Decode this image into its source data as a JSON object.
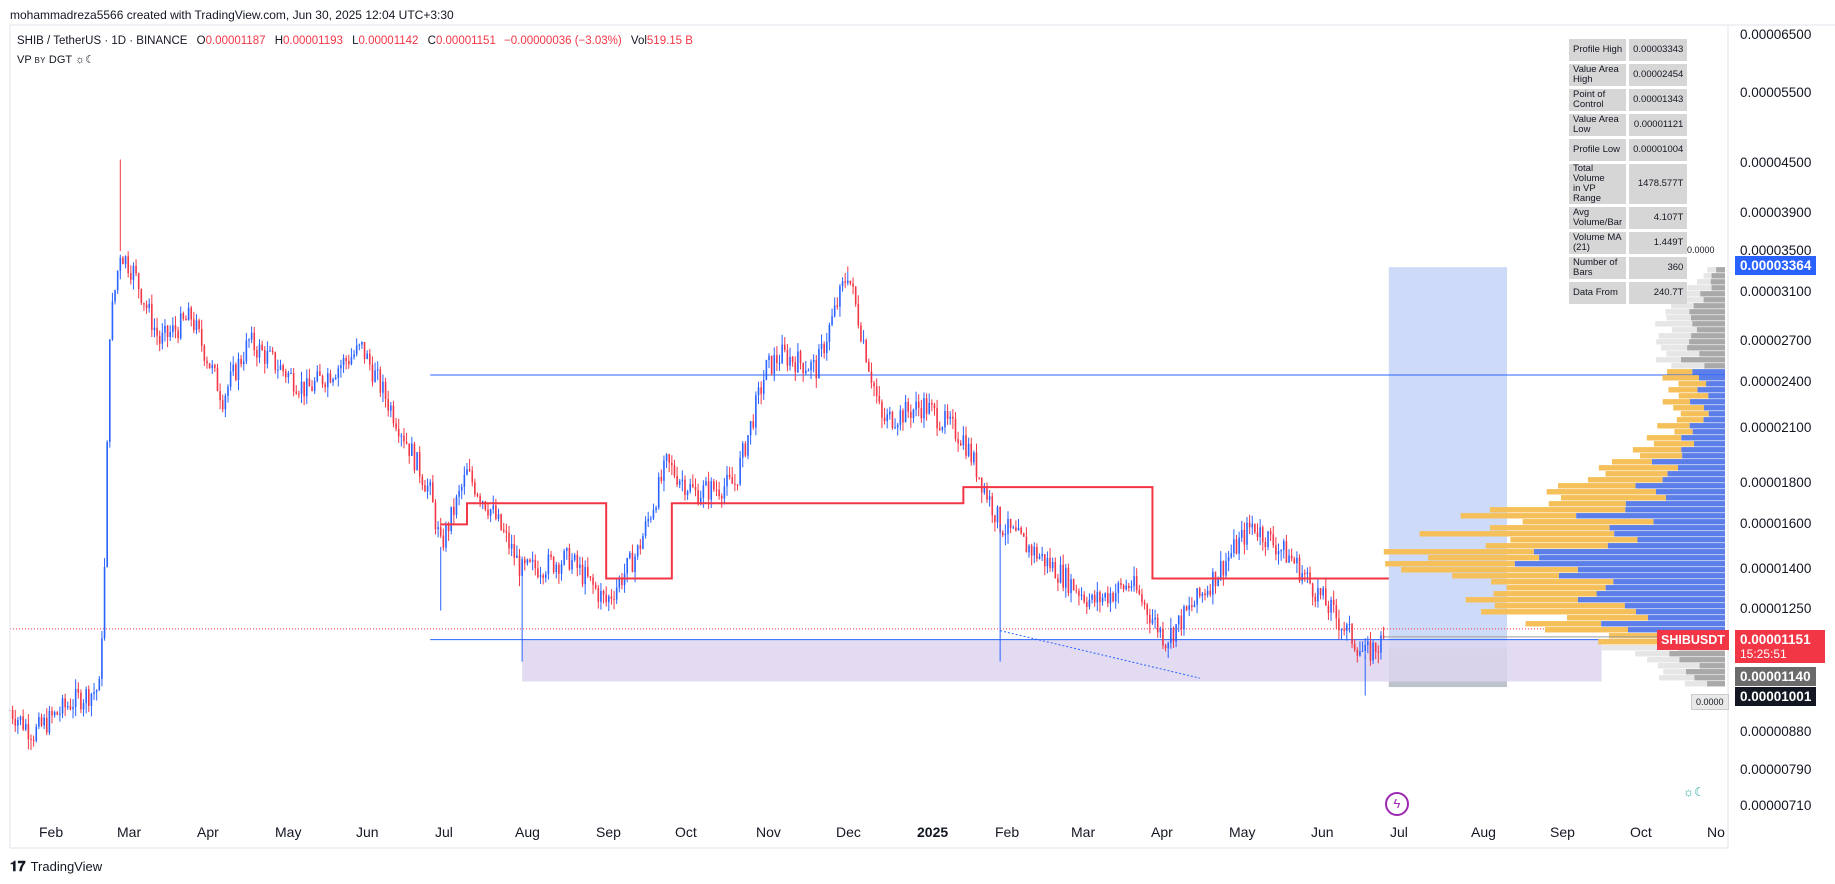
{
  "header": {
    "created_by": "mohammadreza5566 created with TradingView.com, Jun 30, 2025 12:04 UTC+3:30"
  },
  "symbol": {
    "pair": "SHIB / TetherUS · 1D · BINANCE",
    "o_label": "O",
    "o_val": "0.00001187",
    "h_label": "H",
    "h_val": "0.00001193",
    "l_label": "L",
    "l_val": "0.00001142",
    "c_label": "C",
    "c_val": "0.00001151",
    "change": "−0.00000036 (−3.03%)",
    "vol_label": "Vol",
    "vol_val": "519.15 B"
  },
  "indicator": {
    "name": "VP",
    "by": "BY",
    "author": "DGT",
    "icon": "sun-moon-icon"
  },
  "vp_stats": [
    {
      "label": "Profile High",
      "value": "0.00003343"
    },
    {
      "label": "Value Area High",
      "value": "0.00002454"
    },
    {
      "label": "Point of Control",
      "value": "0.00001343"
    },
    {
      "label": "Value Area Low",
      "value": "0.00001121"
    },
    {
      "label": "Profile Low",
      "value": "0.00001004"
    },
    {
      "label": "Total Volume\nin VP Range",
      "value": "1478.577T"
    },
    {
      "label": "Avg Volume/Bar",
      "value": "4.107T"
    },
    {
      "label": "Volume MA (21)",
      "value": "1.449T"
    },
    {
      "label": "Number of Bars",
      "value": "360"
    },
    {
      "label": "Data From",
      "value": "240.7T"
    }
  ],
  "price_axis": {
    "labels": [
      "0.00006500",
      "0.00005500",
      "0.00004500",
      "0.00003900",
      "0.00003500",
      "0.00003100",
      "0.00002700",
      "0.00002400",
      "0.00002100",
      "0.00001800",
      "0.00001600",
      "0.00001400",
      "0.00001250",
      "0.00000880",
      "0.00000790",
      "0.00000710"
    ],
    "tag_upper": "0.00003364",
    "tag_symbol": "SHIBUSDT",
    "tag_last": "0.00001151",
    "tag_countdown": "15:25:51",
    "tag_a": "0.00001140",
    "tag_b": "0.00001001",
    "small_1": "0.0000",
    "small_2": "0.0000"
  },
  "time_axis": {
    "labels": [
      "Feb",
      "Mar",
      "Apr",
      "May",
      "Jun",
      "Jul",
      "Aug",
      "Sep",
      "Oct",
      "Nov",
      "Dec",
      "2025",
      "Feb",
      "Mar",
      "Apr",
      "May",
      "Jun",
      "Jul",
      "Aug",
      "Sep",
      "Oct",
      "No"
    ]
  },
  "footer": {
    "brand": "TradingView",
    "logo_icon": "tradingview-logo-icon"
  },
  "colors": {
    "up": "#2962ff",
    "down": "#f23645",
    "vah_line": "#2962ff",
    "poc_line": "#f23645",
    "vp_up": "#f5c05a",
    "vp_down": "#5b7ee8",
    "vp_outside": "#c8c8c8",
    "box_blue": "#c5d5f7",
    "box_purple": "#ddd5f0"
  },
  "chart_data": {
    "type": "candlestick",
    "symbol": "SHIB / TetherUS",
    "timeframe": "1D",
    "scale": "log",
    "y_range": [
      7.1e-06,
      6.5e-05
    ],
    "x_range": [
      "2024-01-23",
      "2025-11-06"
    ],
    "close_path": [
      [
        "2024-01-23",
        9.4e-06
      ],
      [
        "2024-02-01",
        8.8e-06
      ],
      [
        "2024-02-15",
        9.6e-06
      ],
      [
        "2024-02-26",
        1e-05
      ],
      [
        "2024-02-28",
        1.4e-05
      ],
      [
        "2024-03-01",
        2.8e-05
      ],
      [
        "2024-03-05",
        3.5e-05
      ],
      [
        "2024-03-10",
        3.3e-05
      ],
      [
        "2024-03-20",
        2.7e-05
      ],
      [
        "2024-04-01",
        2.9e-05
      ],
      [
        "2024-04-13",
        2.3e-05
      ],
      [
        "2024-04-23",
        2.7e-05
      ],
      [
        "2024-05-15",
        2.35e-05
      ],
      [
        "2024-06-05",
        2.65e-05
      ],
      [
        "2024-06-20",
        2.1e-05
      ],
      [
        "2024-07-01",
        1.75e-05
      ],
      [
        "2024-07-05",
        1.5e-05
      ],
      [
        "2024-07-15",
        1.85e-05
      ],
      [
        "2024-07-25",
        1.65e-05
      ],
      [
        "2024-08-05",
        1.4e-05
      ],
      [
        "2024-08-23",
        1.45e-05
      ],
      [
        "2024-09-06",
        1.28e-05
      ],
      [
        "2024-09-18",
        1.48e-05
      ],
      [
        "2024-09-29",
        1.9e-05
      ],
      [
        "2024-10-10",
        1.75e-05
      ],
      [
        "2024-10-25",
        1.8e-05
      ],
      [
        "2024-11-06",
        2.5e-05
      ],
      [
        "2024-11-12",
        2.6e-05
      ],
      [
        "2024-11-25",
        2.5e-05
      ],
      [
        "2024-12-07",
        3.3e-05
      ],
      [
        "2024-12-20",
        2.15e-05
      ],
      [
        "2025-01-05",
        2.25e-05
      ],
      [
        "2025-01-20",
        2.05e-05
      ],
      [
        "2025-02-03",
        1.6e-05
      ],
      [
        "2025-02-25",
        1.4e-05
      ],
      [
        "2025-03-10",
        1.28e-05
      ],
      [
        "2025-03-25",
        1.35e-05
      ],
      [
        "2025-04-07",
        1.15e-05
      ],
      [
        "2025-04-20",
        1.3e-05
      ],
      [
        "2025-05-10",
        1.6e-05
      ],
      [
        "2025-05-25",
        1.45e-05
      ],
      [
        "2025-06-05",
        1.3e-05
      ],
      [
        "2025-06-22",
        1.1e-05
      ],
      [
        "2025-06-30",
        1.151e-05
      ]
    ],
    "spikes": [
      {
        "date": "2024-03-05",
        "high": 4.55e-05
      },
      {
        "date": "2024-07-05",
        "low": 1.25e-05
      },
      {
        "date": "2024-08-05",
        "low": 1.08e-05
      },
      {
        "date": "2024-12-07",
        "high": 3.35e-05
      },
      {
        "date": "2025-02-03",
        "low": 1.08e-05
      },
      {
        "date": "2025-06-22",
        "low": 9.8e-06
      }
    ],
    "profile_high": 3.343e-05,
    "value_area_high": 2.454e-05,
    "point_of_control": 1.343e-05,
    "value_area_low": 1.121e-05,
    "profile_low": 1.004e-05,
    "poc_steps": [
      {
        "from": "2024-07-05",
        "to": "2024-07-15",
        "price": 1.6e-05
      },
      {
        "from": "2024-07-15",
        "to": "2024-09-06",
        "price": 1.7e-05
      },
      {
        "from": "2024-09-06",
        "to": "2024-10-01",
        "price": 1.37e-05
      },
      {
        "from": "2024-10-01",
        "to": "2025-01-20",
        "price": 1.7e-05
      },
      {
        "from": "2025-01-20",
        "to": "2025-04-02",
        "price": 1.78e-05
      },
      {
        "from": "2025-04-02",
        "to": "2025-07-01",
        "price": 1.37e-05
      }
    ]
  }
}
